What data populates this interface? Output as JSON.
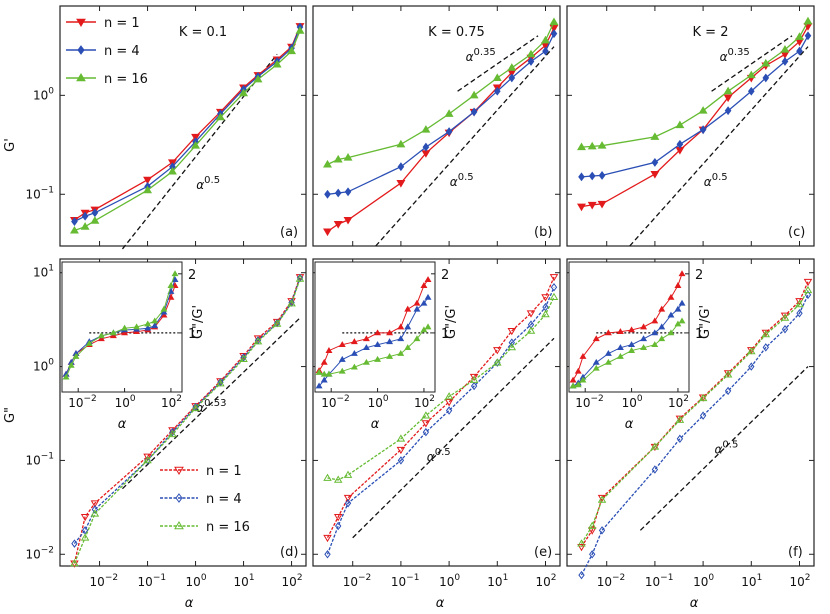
{
  "colors": {
    "n1": "#e31a1c",
    "n4": "#2b4fb5",
    "n16": "#66bb33",
    "guide": "#111111"
  },
  "axis_labels": {
    "x": "α",
    "y_top": "G'",
    "y_bottom": "G\"",
    "inset_y": "G\"/G'",
    "inset_x": "α"
  },
  "legend": {
    "n1": "n = 1",
    "n4": "n = 4",
    "n16": "n = 16"
  },
  "chart_data": [
    {
      "type": "line",
      "panel": "(a)",
      "title": "K = 0.1",
      "xscale": "log",
      "yscale": "log",
      "xlim": [
        0.0015,
        200
      ],
      "ylim": [
        0.03,
        8
      ],
      "ylabel": "G'",
      "guide": {
        "label": "α^0.5",
        "x": [
          0.03,
          50
        ],
        "y": [
          0.028,
          2.6
        ]
      },
      "series": [
        {
          "name": "n = 1",
          "marker": "tri-down",
          "x": [
            0.003,
            0.005,
            0.008,
            0.1,
            0.33,
            1,
            3.3,
            10,
            20,
            50,
            100,
            150
          ],
          "y": [
            0.055,
            0.065,
            0.07,
            0.14,
            0.21,
            0.38,
            0.68,
            1.2,
            1.6,
            2.3,
            3.1,
            5.0
          ]
        },
        {
          "name": "n = 4",
          "marker": "diamond",
          "x": [
            0.003,
            0.005,
            0.008,
            0.1,
            0.33,
            1,
            3.3,
            10,
            20,
            50,
            100,
            150
          ],
          "y": [
            0.053,
            0.06,
            0.065,
            0.12,
            0.19,
            0.34,
            0.65,
            1.15,
            1.55,
            2.2,
            3.0,
            4.9
          ]
        },
        {
          "name": "n = 16",
          "marker": "tri-up",
          "x": [
            0.003,
            0.005,
            0.008,
            0.1,
            0.33,
            1,
            3.3,
            10,
            20,
            50,
            100,
            150
          ],
          "y": [
            0.043,
            0.047,
            0.054,
            0.11,
            0.17,
            0.31,
            0.6,
            1.05,
            1.45,
            2.05,
            2.8,
            4.5
          ]
        }
      ]
    },
    {
      "type": "line",
      "panel": "(b)",
      "title": "K = 0.75",
      "xscale": "log",
      "yscale": "log",
      "xlim": [
        0.0015,
        200
      ],
      "ylim": [
        0.03,
        8
      ],
      "guides": [
        {
          "label": "α^0.5",
          "x": [
            0.03,
            150
          ],
          "y": [
            0.03,
            3.1
          ]
        },
        {
          "label": "α^0.35",
          "x": [
            1.5,
            70
          ],
          "y": [
            1.1,
            4.0
          ]
        }
      ],
      "series": [
        {
          "name": "n = 1",
          "marker": "tri-down",
          "x": [
            0.003,
            0.005,
            0.008,
            0.1,
            0.33,
            1,
            3.3,
            10,
            20,
            50,
            100,
            150
          ],
          "y": [
            0.042,
            0.05,
            0.055,
            0.13,
            0.26,
            0.42,
            0.68,
            1.2,
            1.7,
            2.4,
            3.2,
            4.8
          ]
        },
        {
          "name": "n = 4",
          "marker": "diamond",
          "x": [
            0.003,
            0.005,
            0.008,
            0.1,
            0.33,
            1,
            3.3,
            10,
            20,
            50,
            100,
            150
          ],
          "y": [
            0.1,
            0.103,
            0.106,
            0.19,
            0.3,
            0.43,
            0.68,
            1.1,
            1.5,
            2.2,
            2.8,
            4.2
          ]
        },
        {
          "name": "n = 16",
          "marker": "tri-up",
          "x": [
            0.003,
            0.005,
            0.008,
            0.1,
            0.33,
            1,
            3.3,
            10,
            20,
            50,
            100,
            150
          ],
          "y": [
            0.2,
            0.225,
            0.235,
            0.32,
            0.45,
            0.65,
            1.0,
            1.5,
            1.9,
            2.6,
            3.6,
            5.5
          ]
        }
      ]
    },
    {
      "type": "line",
      "panel": "(c)",
      "title": "K = 2",
      "xscale": "log",
      "yscale": "log",
      "xlim": [
        0.0015,
        200
      ],
      "ylim": [
        0.03,
        8
      ],
      "guides": [
        {
          "label": "α^0.5",
          "x": [
            0.03,
            150
          ],
          "y": [
            0.03,
            3.1
          ]
        },
        {
          "label": "α^0.35",
          "x": [
            1.5,
            70
          ],
          "y": [
            1.1,
            4.0
          ]
        }
      ],
      "series": [
        {
          "name": "n = 1",
          "marker": "tri-down",
          "x": [
            0.003,
            0.005,
            0.008,
            0.1,
            0.33,
            1,
            3.3,
            10,
            20,
            50,
            100,
            150
          ],
          "y": [
            0.075,
            0.078,
            0.08,
            0.16,
            0.28,
            0.45,
            0.95,
            1.5,
            2.0,
            2.6,
            3.5,
            5.0
          ]
        },
        {
          "name": "n = 4",
          "marker": "diamond",
          "x": [
            0.003,
            0.005,
            0.008,
            0.1,
            0.33,
            1,
            3.3,
            10,
            20,
            50,
            100,
            150
          ],
          "y": [
            0.15,
            0.153,
            0.155,
            0.21,
            0.32,
            0.45,
            0.7,
            1.1,
            1.5,
            2.2,
            2.8,
            4.0
          ]
        },
        {
          "name": "n = 16",
          "marker": "tri-up",
          "x": [
            0.003,
            0.005,
            0.008,
            0.1,
            0.33,
            1,
            3.3,
            10,
            20,
            50,
            100,
            150
          ],
          "y": [
            0.3,
            0.305,
            0.31,
            0.38,
            0.5,
            0.7,
            1.1,
            1.6,
            2.1,
            2.9,
            3.9,
            5.6
          ]
        }
      ]
    },
    {
      "type": "line",
      "panel": "(d)",
      "xscale": "log",
      "yscale": "log",
      "xlim": [
        0.0015,
        200
      ],
      "ylim": [
        0.0075,
        14
      ],
      "ylabel": "G\"",
      "xlabel": "α",
      "guide": {
        "label": "α^0.53",
        "x": [
          0.03,
          150
        ],
        "y": [
          0.05,
          3.3
        ]
      },
      "series": [
        {
          "name": "n = 1",
          "marker": "tri-down-open",
          "x": [
            0.003,
            0.005,
            0.008,
            0.1,
            0.33,
            1,
            3.3,
            10,
            20,
            50,
            100,
            150
          ],
          "y": [
            0.008,
            0.025,
            0.035,
            0.11,
            0.21,
            0.38,
            0.7,
            1.3,
            2.0,
            3.0,
            5.0,
            9.0
          ]
        },
        {
          "name": "n = 4",
          "marker": "diamond-open",
          "x": [
            0.003,
            0.005,
            0.008,
            0.1,
            0.33,
            1,
            3.3,
            10,
            20,
            50,
            100,
            150
          ],
          "y": [
            0.013,
            0.018,
            0.03,
            0.1,
            0.2,
            0.37,
            0.68,
            1.25,
            1.9,
            2.9,
            4.8,
            8.8
          ]
        },
        {
          "name": "n = 16",
          "marker": "tri-up-open",
          "x": [
            0.003,
            0.005,
            0.008,
            0.1,
            0.33,
            1,
            3.3,
            10,
            20,
            50,
            100,
            150
          ],
          "y": [
            0.008,
            0.015,
            0.027,
            0.1,
            0.19,
            0.36,
            0.66,
            1.2,
            1.85,
            2.85,
            4.7,
            8.6
          ]
        }
      ]
    },
    {
      "type": "line",
      "panel": "(e)",
      "xscale": "log",
      "yscale": "log",
      "xlim": [
        0.0015,
        200
      ],
      "ylim": [
        0.0075,
        14
      ],
      "xlabel": "α",
      "guide": {
        "label": "α^0.5",
        "x": [
          0.01,
          150
        ],
        "y": [
          0.015,
          2.0
        ]
      },
      "series": [
        {
          "name": "n = 1",
          "marker": "tri-down-open",
          "x": [
            0.003,
            0.005,
            0.008,
            0.1,
            0.33,
            1,
            3.3,
            10,
            20,
            50,
            100,
            150
          ],
          "y": [
            0.015,
            0.025,
            0.04,
            0.13,
            0.25,
            0.42,
            0.78,
            1.5,
            2.4,
            3.7,
            5.5,
            9.0
          ]
        },
        {
          "name": "n = 4",
          "marker": "diamond-open",
          "x": [
            0.003,
            0.005,
            0.008,
            0.1,
            0.33,
            1,
            3.3,
            10,
            20,
            50,
            100,
            150
          ],
          "y": [
            0.01,
            0.02,
            0.035,
            0.1,
            0.2,
            0.34,
            0.62,
            1.1,
            1.8,
            2.8,
            4.3,
            7.0
          ]
        },
        {
          "name": "n = 16",
          "marker": "tri-up-open",
          "x": [
            0.003,
            0.005,
            0.008,
            0.1,
            0.33,
            1,
            3.3,
            10,
            20,
            50,
            100,
            150
          ],
          "y": [
            0.065,
            0.062,
            0.07,
            0.17,
            0.3,
            0.48,
            0.72,
            1.1,
            1.6,
            2.4,
            3.6,
            5.5
          ]
        }
      ]
    },
    {
      "type": "line",
      "panel": "(f)",
      "xscale": "log",
      "yscale": "log",
      "xlim": [
        0.0015,
        200
      ],
      "ylim": [
        0.0075,
        14
      ],
      "xlabel": "α",
      "guide": {
        "label": "α^0.5",
        "x": [
          0.05,
          150
        ],
        "y": [
          0.018,
          1.0
        ]
      },
      "series": [
        {
          "name": "n = 1",
          "marker": "tri-down-open",
          "x": [
            0.003,
            0.005,
            0.008,
            0.1,
            0.33,
            1,
            3.3,
            10,
            20,
            50,
            100,
            150
          ],
          "y": [
            0.012,
            0.018,
            0.04,
            0.14,
            0.28,
            0.47,
            0.85,
            1.5,
            2.3,
            3.5,
            5.0,
            8.0
          ]
        },
        {
          "name": "n = 4",
          "marker": "diamond-open",
          "x": [
            0.003,
            0.005,
            0.008,
            0.1,
            0.33,
            1,
            3.3,
            10,
            20,
            50,
            100,
            150
          ],
          "y": [
            0.006,
            0.01,
            0.018,
            0.08,
            0.17,
            0.3,
            0.55,
            1.0,
            1.6,
            2.5,
            3.7,
            5.8
          ]
        },
        {
          "name": "n = 16",
          "marker": "tri-up-open",
          "x": [
            0.003,
            0.005,
            0.008,
            0.1,
            0.33,
            1,
            3.3,
            10,
            20,
            50,
            100,
            150
          ],
          "y": [
            0.013,
            0.02,
            0.038,
            0.14,
            0.27,
            0.46,
            0.82,
            1.45,
            2.2,
            3.3,
            4.6,
            6.5
          ]
        }
      ]
    },
    {
      "type": "line",
      "panel": "inset (d)",
      "xscale": "log",
      "xlim": [
        0.002,
        300
      ],
      "ylim": [
        0,
        2.2
      ],
      "ylabel": "G\"/G'",
      "xlabel": "α",
      "reference_line": 1,
      "series": [
        {
          "name": "n = 1",
          "x": [
            0.003,
            0.005,
            0.008,
            0.03,
            0.1,
            0.33,
            1,
            3.3,
            10,
            20,
            50,
            100,
            150
          ],
          "y": [
            0.3,
            0.5,
            0.65,
            0.8,
            0.9,
            0.95,
            1.0,
            1.02,
            1.05,
            1.1,
            1.3,
            1.6,
            1.8
          ]
        },
        {
          "name": "n = 4",
          "x": [
            0.003,
            0.005,
            0.008,
            0.03,
            0.1,
            0.33,
            1,
            3.3,
            10,
            20,
            50,
            100,
            150
          ],
          "y": [
            0.3,
            0.5,
            0.65,
            0.85,
            0.95,
            1.0,
            1.05,
            1.06,
            1.08,
            1.12,
            1.35,
            1.7,
            1.9
          ]
        },
        {
          "name": "n = 16",
          "x": [
            0.003,
            0.005,
            0.008,
            0.03,
            0.1,
            0.33,
            1,
            3.3,
            10,
            20,
            50,
            100,
            150
          ],
          "y": [
            0.25,
            0.45,
            0.6,
            0.82,
            0.95,
            1.0,
            1.08,
            1.1,
            1.15,
            1.2,
            1.4,
            1.8,
            2.0
          ]
        }
      ]
    },
    {
      "type": "line",
      "panel": "inset (e)",
      "xscale": "log",
      "xlim": [
        0.002,
        300
      ],
      "ylim": [
        0,
        2.2
      ],
      "ylabel": "G\"/G'",
      "xlabel": "α",
      "reference_line": 1,
      "series": [
        {
          "name": "n = 1",
          "x": [
            0.003,
            0.005,
            0.008,
            0.03,
            0.1,
            0.33,
            1,
            3.3,
            10,
            20,
            50,
            100,
            150
          ],
          "y": [
            0.36,
            0.5,
            0.7,
            0.8,
            0.85,
            0.9,
            1.0,
            1.0,
            1.1,
            1.4,
            1.5,
            1.8,
            1.9
          ]
        },
        {
          "name": "n = 4",
          "x": [
            0.003,
            0.005,
            0.008,
            0.03,
            0.1,
            0.33,
            1,
            3.3,
            10,
            20,
            50,
            100,
            150
          ],
          "y": [
            0.1,
            0.2,
            0.3,
            0.55,
            0.65,
            0.75,
            0.8,
            0.85,
            0.9,
            1.1,
            1.4,
            1.5,
            1.6
          ]
        },
        {
          "name": "n = 16",
          "x": [
            0.003,
            0.005,
            0.008,
            0.03,
            0.1,
            0.33,
            1,
            3.3,
            10,
            20,
            50,
            100,
            150
          ],
          "y": [
            0.33,
            0.3,
            0.3,
            0.35,
            0.42,
            0.5,
            0.55,
            0.6,
            0.65,
            0.75,
            0.9,
            1.05,
            1.1
          ]
        }
      ]
    },
    {
      "type": "line",
      "panel": "inset (f)",
      "xscale": "log",
      "xlim": [
        0.002,
        300
      ],
      "ylim": [
        0,
        2.2
      ],
      "ylabel": "G\"/G'",
      "xlabel": "α",
      "reference_line": 1,
      "series": [
        {
          "name": "n = 1",
          "x": [
            0.003,
            0.005,
            0.008,
            0.03,
            0.1,
            0.33,
            1,
            3.3,
            10,
            20,
            50,
            100,
            150
          ],
          "y": [
            0.2,
            0.35,
            0.6,
            0.9,
            1.0,
            1.02,
            1.05,
            1.1,
            1.2,
            1.4,
            1.6,
            1.8,
            2.0
          ]
        },
        {
          "name": "n = 4",
          "x": [
            0.003,
            0.005,
            0.008,
            0.03,
            0.1,
            0.33,
            1,
            3.3,
            10,
            20,
            50,
            100,
            150
          ],
          "y": [
            0.1,
            0.15,
            0.25,
            0.5,
            0.65,
            0.75,
            0.8,
            0.9,
            1.0,
            1.1,
            1.3,
            1.4,
            1.5
          ]
        },
        {
          "name": "n = 16",
          "x": [
            0.003,
            0.005,
            0.008,
            0.03,
            0.1,
            0.33,
            1,
            3.3,
            10,
            20,
            50,
            100,
            150
          ],
          "y": [
            0.1,
            0.12,
            0.2,
            0.4,
            0.5,
            0.6,
            0.7,
            0.75,
            0.8,
            0.9,
            1.0,
            1.15,
            1.2
          ]
        }
      ]
    }
  ]
}
